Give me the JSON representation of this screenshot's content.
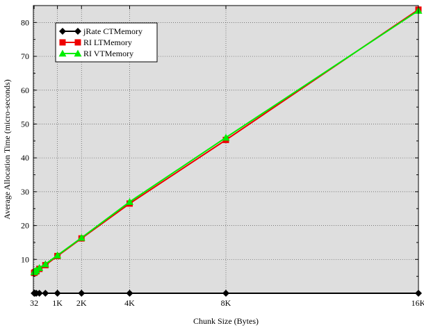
{
  "chart_data": {
    "type": "line",
    "title": "",
    "xlabel": "Chunk Size (Bytes)",
    "ylabel": "Average Allocation Time (micro-seconds)",
    "xlim": [
      0,
      16384
    ],
    "ylim": [
      0,
      85
    ],
    "x_ticks": [
      {
        "value": 32,
        "label": "32"
      },
      {
        "value": 1024,
        "label": "1K"
      },
      {
        "value": 2048,
        "label": "2K"
      },
      {
        "value": 4096,
        "label": "4K"
      },
      {
        "value": 8192,
        "label": "8K"
      },
      {
        "value": 16384,
        "label": "16K"
      }
    ],
    "y_ticks": [
      10,
      20,
      30,
      40,
      50,
      60,
      70,
      80
    ],
    "grid": true,
    "background_color": "#dedede",
    "legend_position": "top-left",
    "series": [
      {
        "name": "jRate CTMemory",
        "color": "#000000",
        "marker": "diamond",
        "x": [
          32,
          64,
          128,
          256,
          512,
          1024,
          2048,
          4096,
          8192,
          16384
        ],
        "y": [
          0,
          0,
          0,
          0,
          0,
          0,
          0,
          0,
          0,
          0
        ]
      },
      {
        "name": "RI LTMemory",
        "color": "#ee0000",
        "marker": "square",
        "x": [
          32,
          64,
          128,
          256,
          512,
          1024,
          2048,
          4096,
          8192,
          16384
        ],
        "y": [
          6.0,
          6.2,
          6.5,
          7.2,
          8.3,
          11.0,
          16.2,
          26.5,
          45.3,
          83.8
        ]
      },
      {
        "name": "RI VTMemory",
        "color": "#00ee00",
        "marker": "triangle",
        "x": [
          32,
          64,
          128,
          256,
          512,
          1024,
          2048,
          4096,
          8192,
          16384
        ],
        "y": [
          6.3,
          6.5,
          6.8,
          7.5,
          8.6,
          11.2,
          16.4,
          27.0,
          46.0,
          83.5
        ]
      }
    ]
  }
}
